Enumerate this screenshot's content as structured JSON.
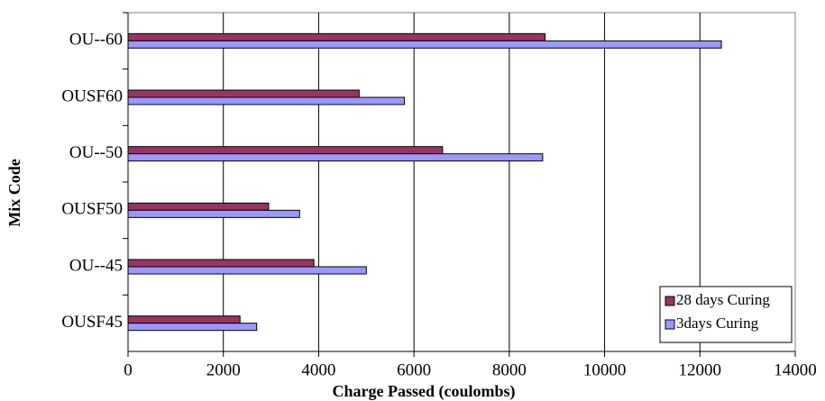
{
  "chart_data": {
    "type": "bar",
    "orientation": "horizontal",
    "categories": [
      "OU--60",
      "OUSF60",
      "OU--50",
      "OUSF50",
      "OU--45",
      "OUSF45"
    ],
    "series": [
      {
        "name": "28 days Curing",
        "color": "#993366",
        "values": [
          8750,
          4850,
          6600,
          2950,
          3900,
          2350
        ]
      },
      {
        "name": "3days Curing",
        "color": "#9999ff",
        "values": [
          12450,
          5800,
          8700,
          3600,
          5000,
          2700
        ]
      }
    ],
    "x_label": "Charge Passed (coulombs)",
    "y_label": "Mix Code",
    "xlim": [
      0,
      14000
    ],
    "xticks": [
      0,
      2000,
      4000,
      6000,
      8000,
      10000,
      12000,
      14000
    ],
    "grid": true,
    "legend_position": "lower right"
  }
}
